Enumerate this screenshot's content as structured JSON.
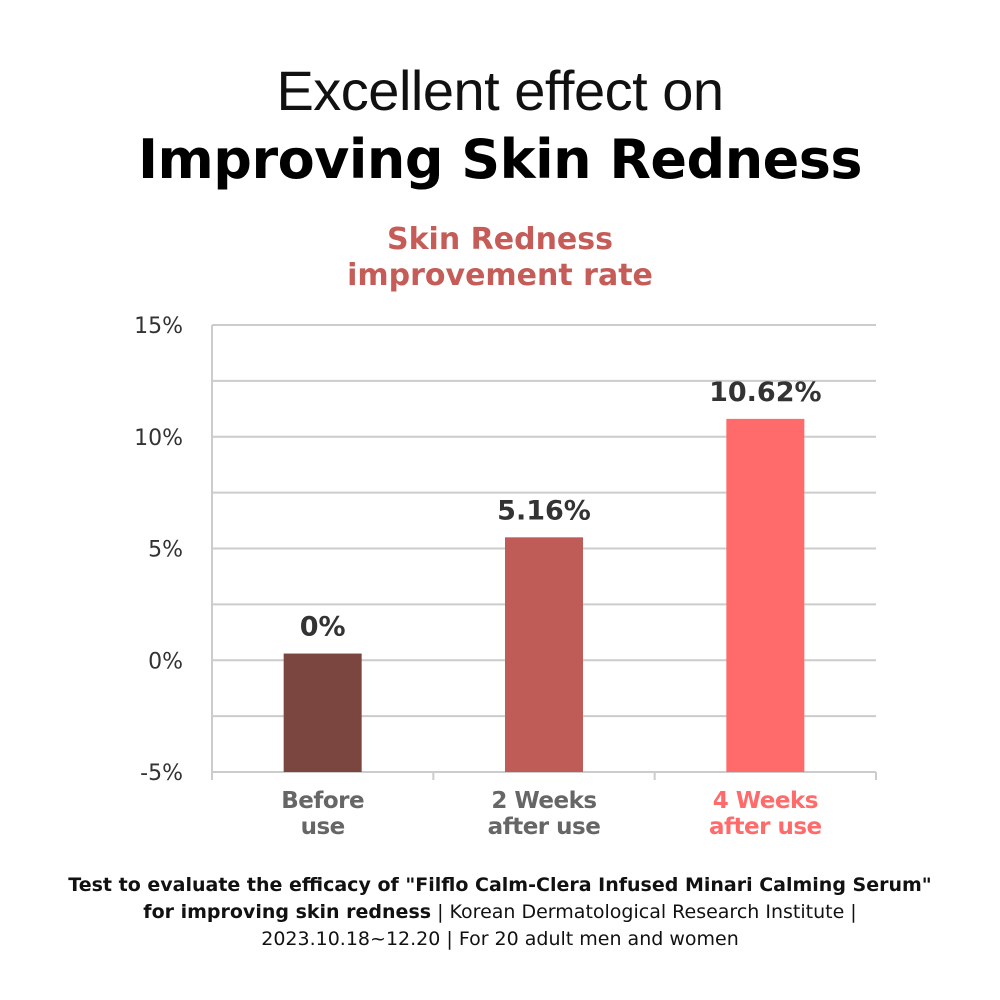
{
  "headline": {
    "line1": "Excellent effect on",
    "line2": "Improving Skin Redness"
  },
  "colors": {
    "title": "#c55c58",
    "bar_before": "#7b4540",
    "bar_2weeks": "#c05c58",
    "bar_4weeks": "#ff6b6b",
    "grid": "#cccccc",
    "axis_text": "#333333",
    "category_text": "#666666"
  },
  "chart_data": {
    "type": "bar",
    "title_lines": [
      "Skin Redness",
      "improvement rate"
    ],
    "categories": [
      [
        "Before",
        "use"
      ],
      [
        "2 Weeks",
        "after use"
      ],
      [
        "4 Weeks",
        "after use"
      ]
    ],
    "values": [
      0,
      5.16,
      10.62
    ],
    "bar_values_drawn": [
      0.3,
      5.5,
      10.8
    ],
    "data_labels": [
      "0%",
      "5.16%",
      "10.62%"
    ],
    "yticks": [
      "-5%",
      "0%",
      "5%",
      "10%",
      "15%"
    ],
    "ylim": [
      -5,
      15
    ],
    "grid": true,
    "highlight_category": 2
  },
  "footnote": {
    "line1": "Test to evaluate the efficacy of \"Filflo Calm-Clera Infused Minari Calming Serum\"",
    "line2_bold": "for improving skin redness",
    "line2_rest": " | Korean Dermatological Research Institute |",
    "line3": "2023.10.18~12.20 | For 20 adult men and women"
  }
}
